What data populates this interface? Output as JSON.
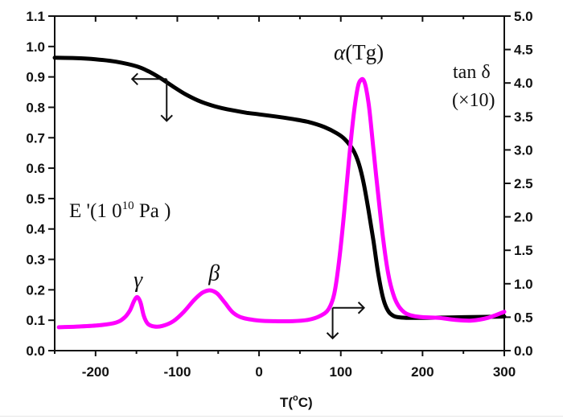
{
  "chart_data": {
    "type": "line",
    "title": "",
    "xlabel": "T(°C)",
    "xlabel_parts": {
      "main": "T(",
      "sup": "o",
      "tail": "C)"
    },
    "xlim": [
      -250,
      300
    ],
    "x_ticks": [
      -200,
      -100,
      0,
      100,
      200,
      300
    ],
    "x_tick_labels": [
      "-200",
      "-100",
      "0",
      "100",
      "200",
      "300"
    ],
    "x_minor_ticks": [
      -250,
      -150,
      -50,
      50,
      150,
      250
    ],
    "y_left": {
      "label": "E '(10^10 Pa)",
      "label_parts": {
        "main": "E '(1 0",
        "sup": "10",
        "tail": " Pa )"
      },
      "lim": [
        0.0,
        1.1
      ],
      "ticks": [
        0.0,
        0.1,
        0.2,
        0.3,
        0.4,
        0.5,
        0.6,
        0.7,
        0.8,
        0.9,
        1.0,
        1.1
      ],
      "tick_labels": [
        "0.0",
        "0.1",
        "0.2",
        "0.3",
        "0.4",
        "0.5",
        "0.6",
        "0.7",
        "0.8",
        "0.9",
        "1.0",
        "1.1"
      ]
    },
    "y_right": {
      "label": "tan δ (×10)",
      "label_line1": "tan δ",
      "label_line2": "(×10)",
      "lim": [
        0.0,
        5.0
      ],
      "ticks": [
        0.0,
        0.5,
        1.0,
        1.5,
        2.0,
        2.5,
        3.0,
        3.5,
        4.0,
        4.5,
        5.0
      ],
      "tick_labels": [
        "0.0",
        "0.5",
        "1.0",
        "1.5",
        "2.0",
        "2.5",
        "3.0",
        "3.5",
        "4.0",
        "4.5",
        "5.0"
      ]
    },
    "grid": false,
    "legend": "none",
    "series": [
      {
        "name": "E'",
        "axis": "left",
        "color": "#000000",
        "x": [
          -250,
          -225,
          -200,
          -175,
          -150,
          -135,
          -120,
          -105,
          -90,
          -75,
          -60,
          -45,
          -30,
          -15,
          0,
          20,
          40,
          60,
          80,
          95,
          105,
          115,
          122,
          128,
          134,
          140,
          146,
          152,
          158,
          164,
          170,
          180,
          200,
          250,
          300
        ],
        "y": [
          0.963,
          0.962,
          0.958,
          0.95,
          0.935,
          0.918,
          0.895,
          0.868,
          0.843,
          0.823,
          0.808,
          0.797,
          0.789,
          0.782,
          0.777,
          0.77,
          0.762,
          0.752,
          0.735,
          0.715,
          0.695,
          0.66,
          0.615,
          0.55,
          0.46,
          0.36,
          0.25,
          0.17,
          0.13,
          0.115,
          0.11,
          0.108,
          0.108,
          0.11,
          0.112
        ]
      },
      {
        "name": "tan δ (×10)",
        "axis": "right",
        "color": "#ff00ff",
        "x": [
          -245,
          -220,
          -195,
          -175,
          -165,
          -158,
          -153,
          -149,
          -145,
          -141,
          -136,
          -128,
          -118,
          -105,
          -92,
          -80,
          -70,
          -62,
          -56,
          -50,
          -42,
          -32,
          -20,
          0,
          20,
          40,
          60,
          75,
          85,
          92,
          98,
          104,
          110,
          116,
          121,
          125,
          128,
          131,
          135,
          140,
          146,
          152,
          158,
          164,
          170,
          178,
          188,
          200,
          220,
          240,
          260,
          280,
          300
        ],
        "y": [
          0.35,
          0.36,
          0.38,
          0.42,
          0.49,
          0.6,
          0.74,
          0.8,
          0.72,
          0.52,
          0.4,
          0.36,
          0.37,
          0.44,
          0.58,
          0.75,
          0.86,
          0.9,
          0.89,
          0.84,
          0.72,
          0.57,
          0.49,
          0.45,
          0.44,
          0.44,
          0.46,
          0.52,
          0.62,
          0.85,
          1.35,
          2.05,
          2.85,
          3.55,
          3.95,
          4.05,
          4.04,
          3.92,
          3.6,
          3.0,
          2.3,
          1.65,
          1.15,
          0.85,
          0.68,
          0.57,
          0.52,
          0.5,
          0.49,
          0.46,
          0.45,
          0.49,
          0.58
        ]
      }
    ],
    "annotations": [
      {
        "text": "α(Tg)",
        "symbol": "α",
        "rest": "(Tg)",
        "x": 122,
        "y_right": 4.35
      },
      {
        "text": "γ",
        "x": -148,
        "y_right": 0.95
      },
      {
        "text": "β",
        "x": -55,
        "y_right": 1.05
      },
      {
        "text": "E '(10^10 Pa)",
        "role": "left-axis-label"
      },
      {
        "text": "tan δ (×10)",
        "role": "right-axis-label"
      }
    ],
    "axis_indicator_arrows": [
      {
        "series": "E'",
        "points_to": "left-axis",
        "anchor_x": -113,
        "anchor_y_left": 0.893
      },
      {
        "series": "tan δ (×10)",
        "points_to": "right-axis",
        "anchor_x": 90,
        "anchor_y_right": 0.64
      }
    ]
  }
}
